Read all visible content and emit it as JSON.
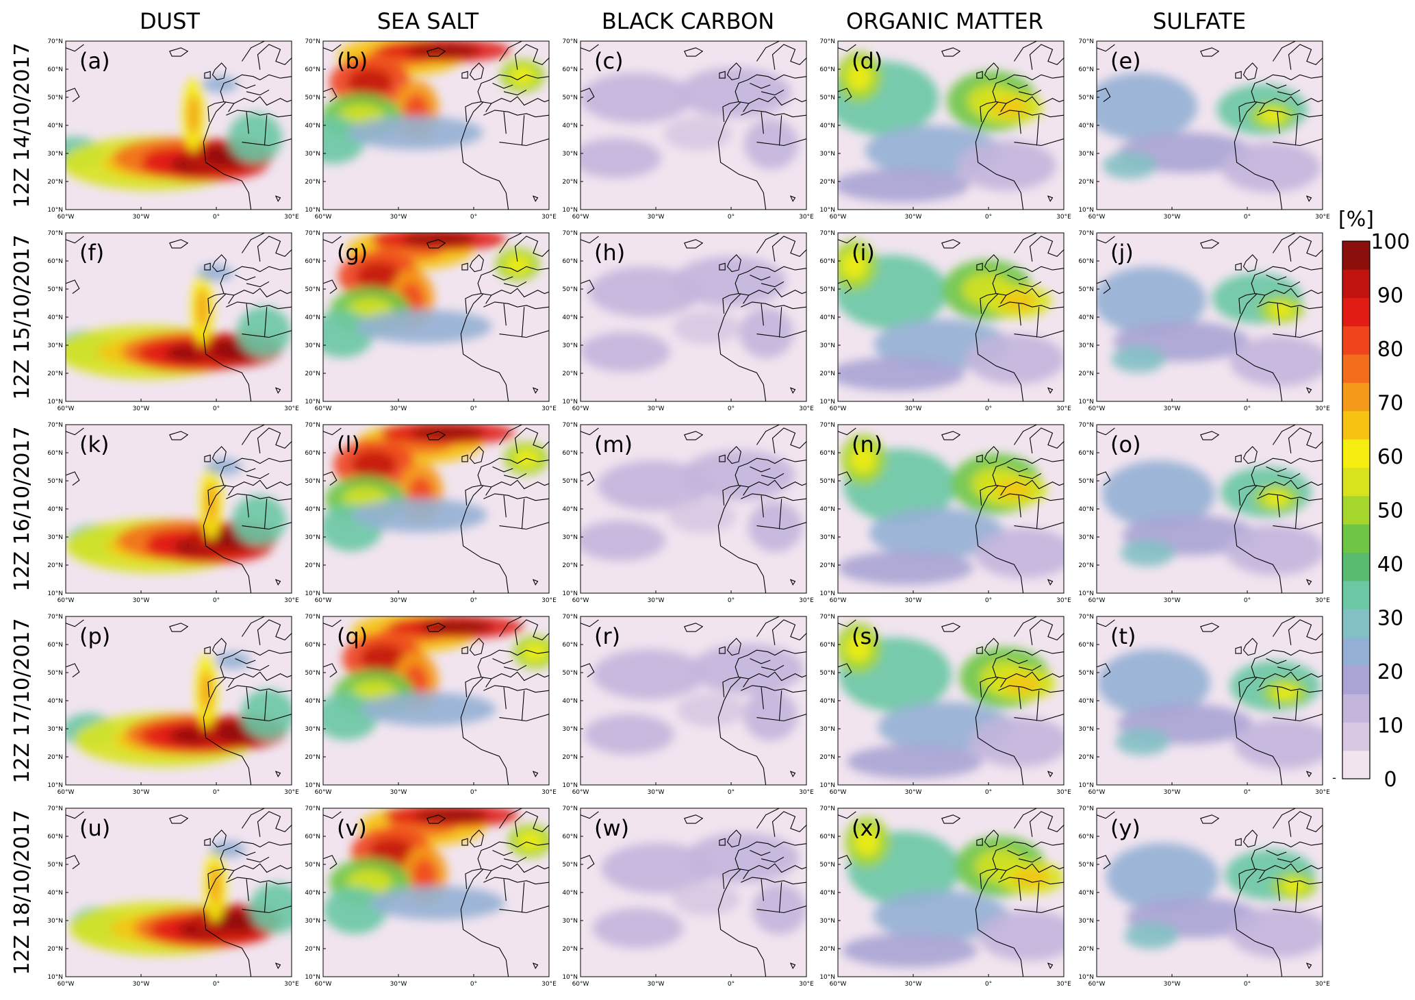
{
  "columns": [
    "DUST",
    "SEA SALT",
    "BLACK CARBON",
    "ORGANIC MATTER",
    "SULFATE"
  ],
  "rows": [
    "12Z 14/10/2017",
    "12Z 15/10/2017",
    "12Z 16/10/2017",
    "12Z 17/10/2017",
    "12Z 18/10/2017"
  ],
  "panel_letters": [
    "(a)",
    "(b)",
    "(c)",
    "(d)",
    "(e)",
    "(f)",
    "(g)",
    "(h)",
    "(i)",
    "(j)",
    "(k)",
    "(l)",
    "(m)",
    "(n)",
    "(o)",
    "(p)",
    "(q)",
    "(r)",
    "(s)",
    "(t)",
    "(u)",
    "(v)",
    "(w)",
    "(x)",
    "(y)"
  ],
  "lat_ticks": [
    "70°N",
    "60°N",
    "50°N",
    "40°N",
    "30°N",
    "20°N",
    "10°N"
  ],
  "lon_ticks": [
    "60°W",
    "30°W",
    "0°",
    "30°E"
  ],
  "colorbar": {
    "unit_label": "[%]",
    "tick_labels": [
      "100",
      "90",
      "80",
      "70",
      "60",
      "50",
      "40",
      "30",
      "20",
      "10",
      "0"
    ],
    "under_marker": "-",
    "colors": [
      "#f1e4ef",
      "#d8c8e2",
      "#c3b5dc",
      "#a9a4d4",
      "#93b0d4",
      "#83c0c4",
      "#6ac8a4",
      "#58bb70",
      "#6fc645",
      "#a6d52c",
      "#d8e31d",
      "#f5ee10",
      "#f6c312",
      "#f59a18",
      "#f26e1d",
      "#f0441c",
      "#e11c14",
      "#c2140f",
      "#8b0f0a"
    ]
  },
  "map_colors": {
    "land_outline": "#000000",
    "background": "#f1e4ef"
  }
}
